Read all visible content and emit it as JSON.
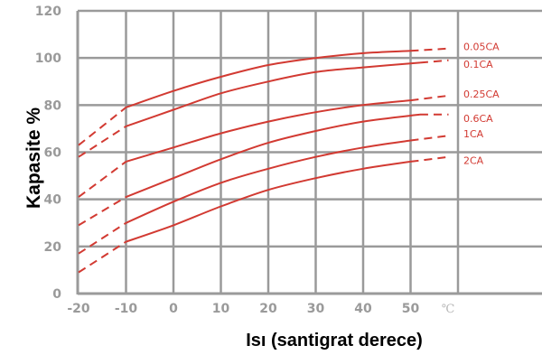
{
  "chart_data": {
    "type": "line",
    "title": "",
    "xlabel": "Isı (santigrat derece)",
    "ylabel": "Kapasite %",
    "x_unit": "℃",
    "xlim": [
      -20,
      60
    ],
    "ylim": [
      0,
      120
    ],
    "x_ticks": [
      "-20",
      "-10",
      "0",
      "10",
      "20",
      "30",
      "40",
      "50"
    ],
    "y_ticks": [
      "0",
      "20",
      "40",
      "60",
      "80",
      "100",
      "120"
    ],
    "grid": true,
    "line_color": "#d23a32",
    "series": [
      {
        "name": "0.05CA",
        "solid_x": [
          -10,
          0,
          10,
          20,
          30,
          40,
          50
        ],
        "solid_y": [
          79,
          86,
          92,
          97,
          100,
          102,
          103
        ],
        "dashed_before_x": [
          -20,
          -10
        ],
        "dashed_before_y": [
          63,
          79
        ],
        "dashed_after_x": [
          50,
          58
        ],
        "dashed_after_y": [
          103,
          104
        ]
      },
      {
        "name": "0.1CA",
        "solid_x": [
          -10,
          0,
          10,
          20,
          30,
          40,
          52
        ],
        "solid_y": [
          71,
          78,
          85,
          90,
          94,
          96,
          98
        ],
        "dashed_before_x": [
          -20,
          -10
        ],
        "dashed_before_y": [
          58,
          71
        ],
        "dashed_after_x": [
          52,
          58
        ],
        "dashed_after_y": [
          98,
          99
        ]
      },
      {
        "name": "0.25CA",
        "solid_x": [
          -10,
          0,
          10,
          20,
          30,
          40,
          50
        ],
        "solid_y": [
          56,
          62,
          68,
          73,
          77,
          80,
          82
        ],
        "dashed_before_x": [
          -20,
          -10
        ],
        "dashed_before_y": [
          41,
          56
        ],
        "dashed_after_x": [
          50,
          58
        ],
        "dashed_after_y": [
          82,
          84
        ]
      },
      {
        "name": "0.6CA",
        "solid_x": [
          -10,
          0,
          10,
          20,
          30,
          40,
          52
        ],
        "solid_y": [
          41,
          49,
          57,
          64,
          69,
          73,
          76
        ],
        "dashed_before_x": [
          -20,
          -10
        ],
        "dashed_before_y": [
          29,
          41
        ],
        "dashed_after_x": [
          52,
          58
        ],
        "dashed_after_y": [
          76,
          76
        ]
      },
      {
        "name": "1CA",
        "solid_x": [
          -10,
          0,
          10,
          20,
          30,
          40,
          50
        ],
        "solid_y": [
          30,
          39,
          47,
          53,
          58,
          62,
          65
        ],
        "dashed_before_x": [
          -20,
          -10
        ],
        "dashed_before_y": [
          17,
          30
        ],
        "dashed_after_x": [
          50,
          58
        ],
        "dashed_after_y": [
          65,
          67
        ]
      },
      {
        "name": "2CA",
        "solid_x": [
          -10,
          0,
          10,
          20,
          30,
          40,
          50
        ],
        "solid_y": [
          22,
          29,
          37,
          44,
          49,
          53,
          56
        ],
        "dashed_before_x": [
          -20,
          -10
        ],
        "dashed_before_y": [
          9,
          22
        ],
        "dashed_after_x": [
          50,
          58
        ],
        "dashed_after_y": [
          56,
          58
        ]
      }
    ]
  }
}
